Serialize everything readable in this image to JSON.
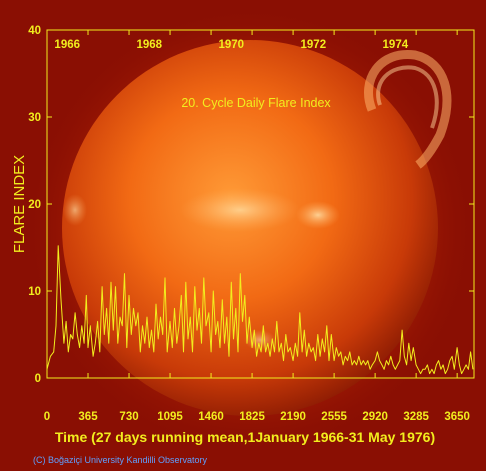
{
  "chart_data": {
    "type": "line",
    "title": "20. Cycle Daily Flare Index",
    "xlabel": "Time (27 days running mean,1January 1966-31 May 1976)",
    "ylabel": "FLARE INDEX",
    "credit": "(C) Boğaziçi University Kandilli Observatory",
    "xlim": [
      0,
      3800
    ],
    "ylim": [
      0,
      40
    ],
    "x_ticks": [
      0,
      365,
      730,
      1095,
      1460,
      1825,
      2190,
      2555,
      2920,
      3285,
      3650
    ],
    "y_ticks": [
      0,
      10,
      20,
      30,
      40
    ],
    "year_labels": [
      {
        "label": "1966",
        "day": 180
      },
      {
        "label": "1968",
        "day": 910
      },
      {
        "label": "1970",
        "day": 1640
      },
      {
        "label": "1972",
        "day": 2370
      },
      {
        "label": "1974",
        "day": 3100
      }
    ],
    "series": [
      {
        "color": "#f2ee1e",
        "x": [
          0,
          30,
          60,
          80,
          100,
          125,
          150,
          170,
          190,
          210,
          230,
          250,
          270,
          290,
          310,
          330,
          350,
          365,
          385,
          410,
          430,
          450,
          470,
          490,
          510,
          530,
          550,
          570,
          590,
          610,
          630,
          650,
          670,
          690,
          710,
          730,
          750,
          770,
          790,
          810,
          830,
          850,
          870,
          890,
          910,
          930,
          950,
          970,
          990,
          1010,
          1030,
          1050,
          1070,
          1095,
          1115,
          1135,
          1155,
          1175,
          1195,
          1215,
          1235,
          1255,
          1275,
          1295,
          1315,
          1335,
          1355,
          1375,
          1395,
          1415,
          1440,
          1460,
          1480,
          1500,
          1520,
          1540,
          1560,
          1580,
          1600,
          1620,
          1640,
          1660,
          1680,
          1700,
          1720,
          1740,
          1760,
          1780,
          1800,
          1825,
          1845,
          1865,
          1885,
          1905,
          1925,
          1945,
          1965,
          1985,
          2005,
          2025,
          2045,
          2065,
          2085,
          2105,
          2125,
          2145,
          2165,
          2190,
          2210,
          2230,
          2250,
          2270,
          2290,
          2310,
          2330,
          2350,
          2370,
          2390,
          2410,
          2430,
          2450,
          2470,
          2490,
          2510,
          2530,
          2555,
          2575,
          2595,
          2615,
          2635,
          2655,
          2675,
          2695,
          2715,
          2735,
          2755,
          2775,
          2795,
          2815,
          2835,
          2855,
          2875,
          2895,
          2920,
          2940,
          2960,
          2980,
          3000,
          3020,
          3040,
          3060,
          3080,
          3100,
          3120,
          3140,
          3160,
          3180,
          3200,
          3220,
          3240,
          3260,
          3285,
          3305,
          3325,
          3345,
          3365,
          3385,
          3405,
          3425,
          3445,
          3465,
          3485,
          3505,
          3525,
          3545,
          3565,
          3585,
          3605,
          3625,
          3650,
          3670,
          3690,
          3710,
          3730,
          3750,
          3770,
          3790
        ],
        "y": [
          1,
          2.5,
          3,
          6,
          15.2,
          9,
          4,
          6.5,
          3,
          5,
          4.5,
          7.5,
          5,
          3.5,
          6,
          4,
          9.5,
          3.5,
          6,
          2.5,
          4,
          6.5,
          3,
          10.5,
          5,
          8,
          4,
          11,
          5.5,
          10.5,
          4,
          7,
          6,
          12,
          3.5,
          9.5,
          5,
          8,
          6,
          7.5,
          3,
          6,
          4,
          7,
          3.5,
          5.5,
          3,
          8.5,
          4.5,
          7,
          5,
          11.5,
          3,
          6.5,
          3.5,
          8,
          4,
          6,
          9.5,
          3,
          11,
          4.5,
          7,
          3,
          10.5,
          5.5,
          8,
          4,
          11.5,
          6,
          7.5,
          3,
          10,
          5,
          6.5,
          3.5,
          9,
          4,
          7,
          2.5,
          11,
          4.5,
          8,
          3,
          12,
          6.5,
          9.5,
          4,
          7,
          3.5,
          5.5,
          2.5,
          4,
          3,
          6,
          3,
          4,
          2.5,
          4.5,
          3,
          6.5,
          3,
          4,
          2,
          5,
          3,
          3.5,
          2,
          4,
          2.5,
          7.5,
          3,
          5.5,
          2.5,
          4,
          3,
          3.5,
          2,
          5,
          2.5,
          4.5,
          3,
          6,
          2,
          5,
          2,
          3.5,
          2.5,
          3,
          1.5,
          2.5,
          2,
          3,
          1.5,
          2,
          1.5,
          2.5,
          1.5,
          2,
          1.5,
          2,
          1,
          1.5,
          2,
          3,
          2,
          1.5,
          1,
          2,
          1.5,
          2.5,
          1.5,
          1,
          1.5,
          2,
          5.5,
          2.5,
          1.5,
          4,
          2,
          3.5,
          1.5,
          1,
          0.5,
          1,
          1,
          1.5,
          0.5,
          1,
          0.5,
          1.5,
          2,
          1,
          1.5,
          0.5,
          1,
          2,
          2.5,
          1,
          3.5,
          1.5,
          0.5,
          1,
          1.5,
          1,
          3,
          1
        ]
      }
    ]
  }
}
